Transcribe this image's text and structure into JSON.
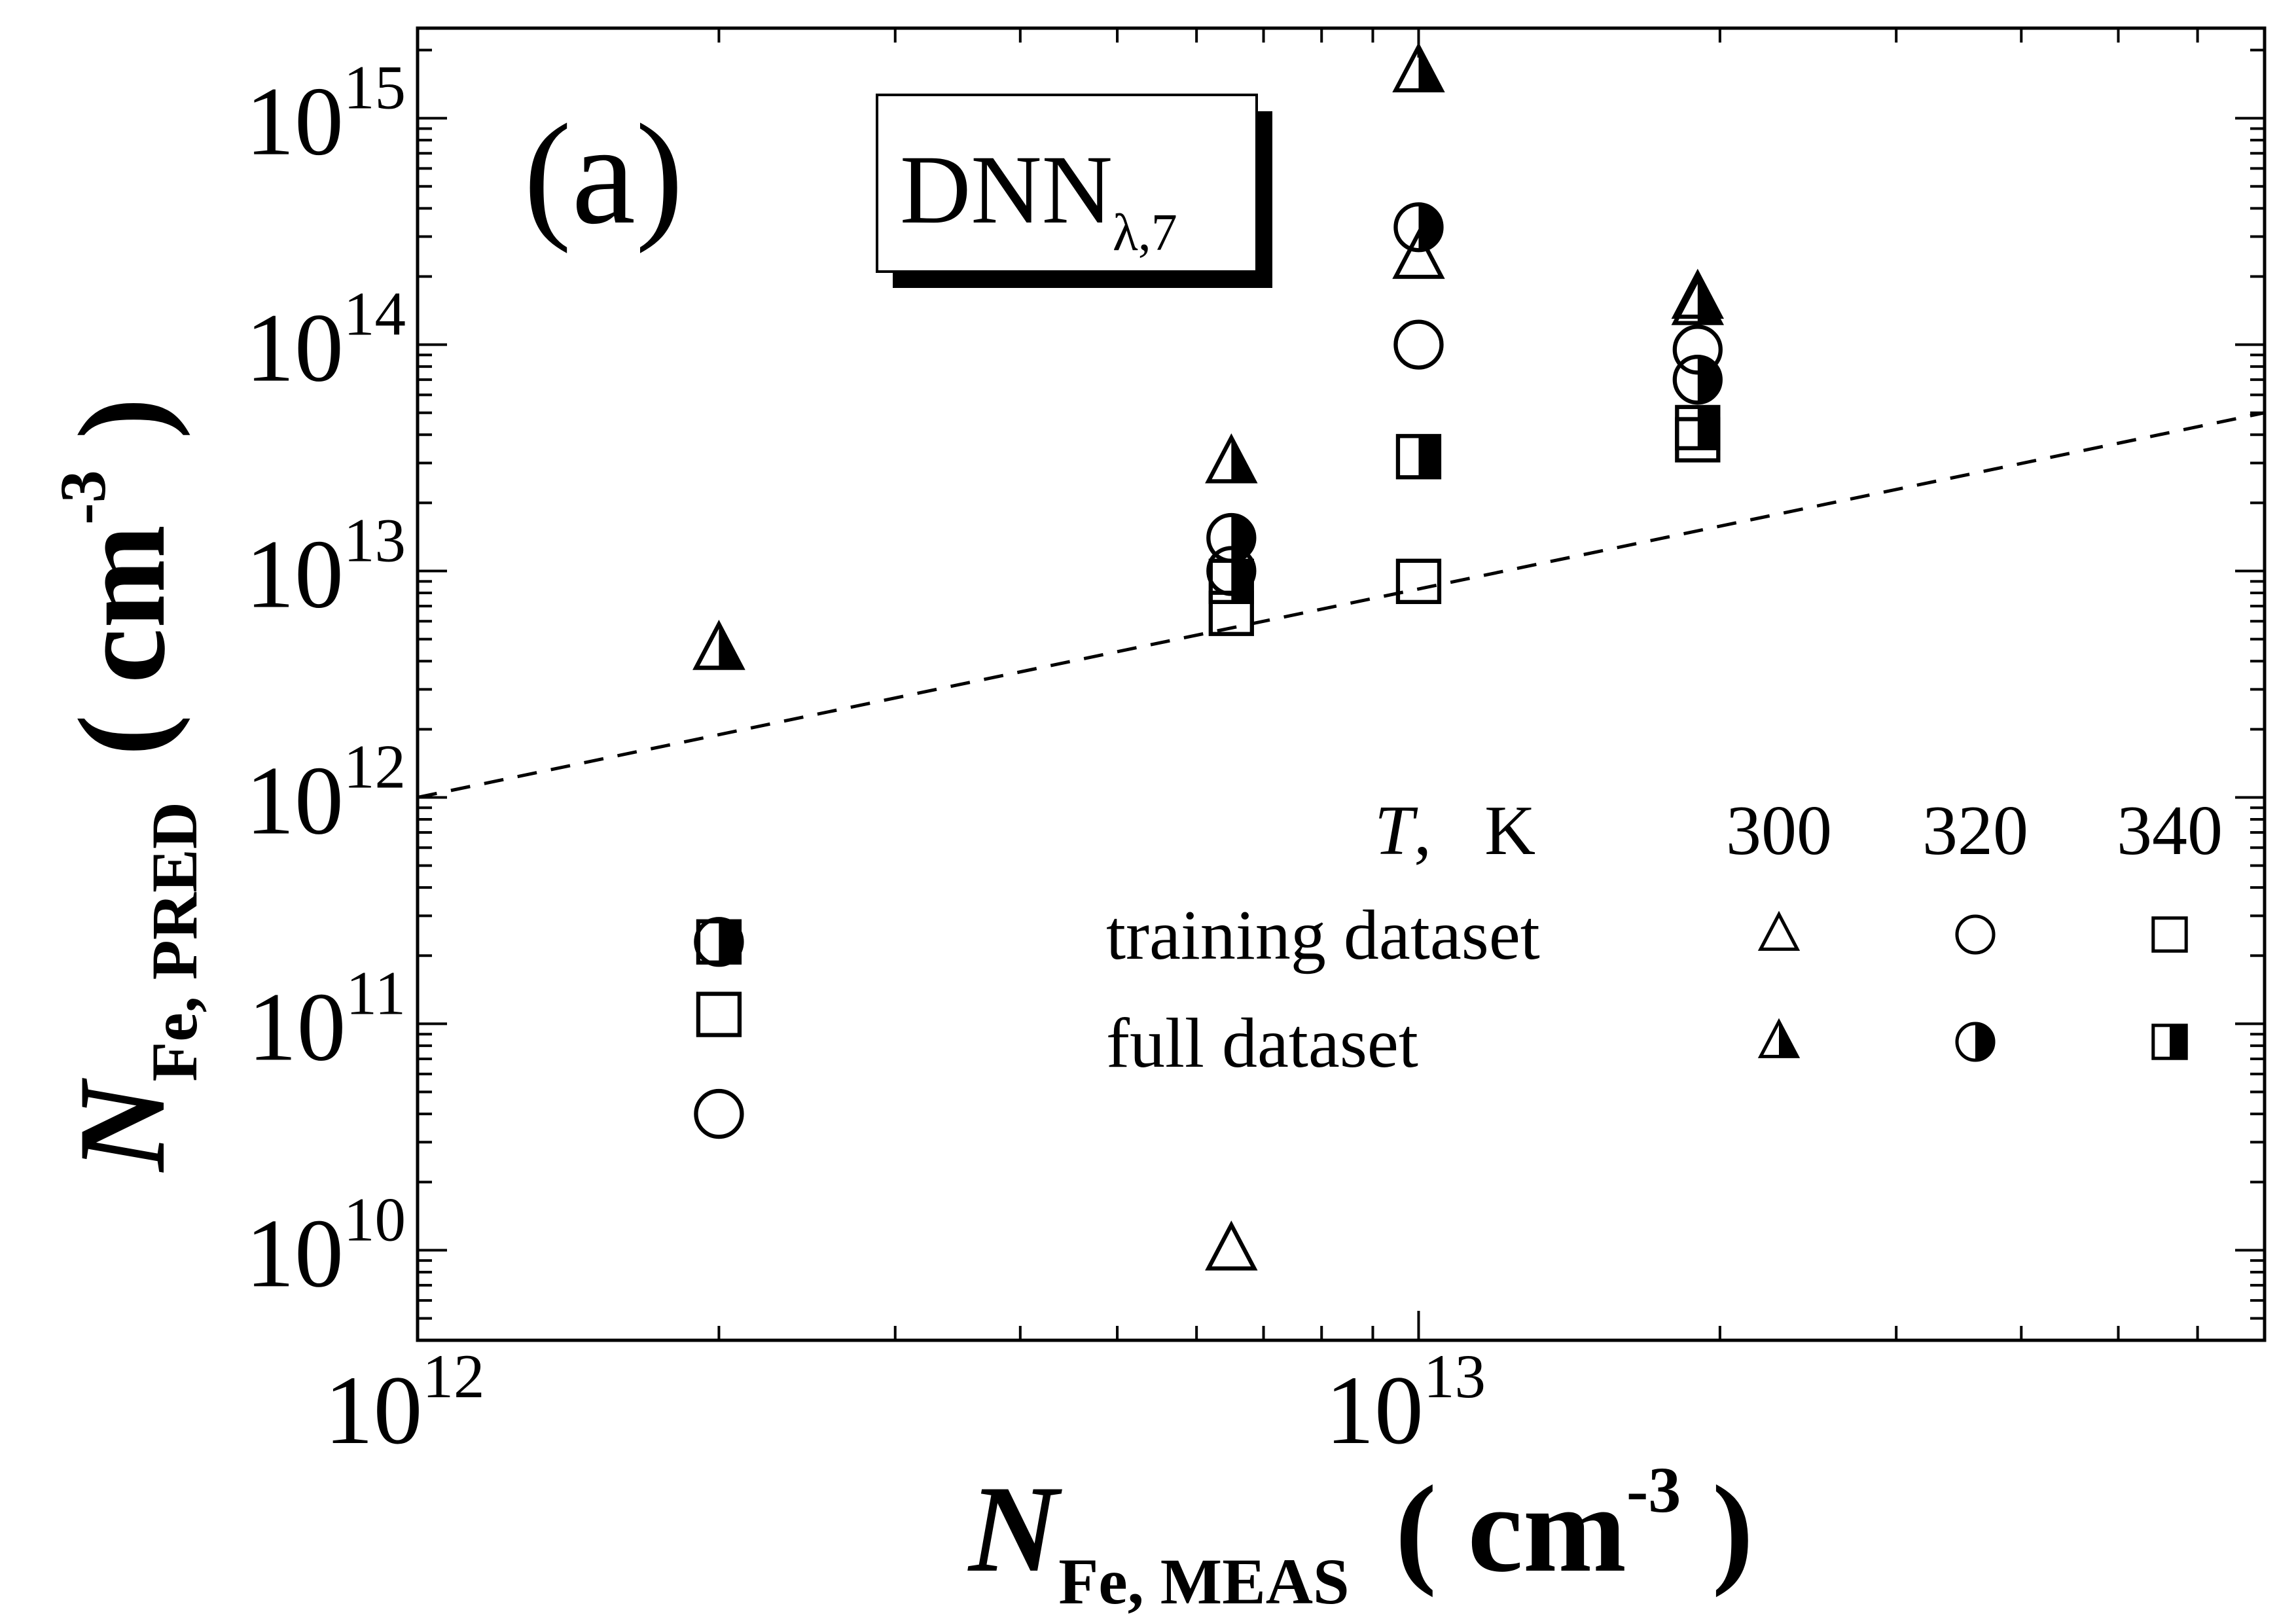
{
  "chart_data": {
    "type": "scatter",
    "panel_label": "(a)",
    "model_label": {
      "main": "DNN",
      "sub": "λ,7"
    },
    "x_axis": {
      "scale": "log",
      "range": [
        1000000000000.0,
        70000000000000.0
      ],
      "major_ticks": [
        {
          "value": 1000000000000.0,
          "base": "10",
          "exp": "12"
        },
        {
          "value": 10000000000000.0,
          "base": "10",
          "exp": "13"
        }
      ],
      "label": {
        "symbol": "N",
        "sub": "Fe, MEAS",
        "unit_open": "( cm",
        "unit_exp": "-3",
        "unit_close": " )"
      }
    },
    "y_axis": {
      "scale": "log",
      "range": [
        4000000000.0,
        2500000000000000.0
      ],
      "major_ticks": [
        {
          "value": 10000000000.0,
          "base": "10",
          "exp": "10"
        },
        {
          "value": 100000000000.0,
          "base": "10",
          "exp": "11"
        },
        {
          "value": 1000000000000.0,
          "base": "10",
          "exp": "12"
        },
        {
          "value": 10000000000000.0,
          "base": "10",
          "exp": "13"
        },
        {
          "value": 100000000000000.0,
          "base": "10",
          "exp": "14"
        },
        {
          "value": 1000000000000000.0,
          "base": "10",
          "exp": "15"
        }
      ],
      "label": {
        "symbol": "N",
        "sub": "Fe, PRED",
        "unit_open": "( cm",
        "unit_exp": "-3",
        "unit_close": " )"
      }
    },
    "reference_line": {
      "style": "dashed",
      "x": [
        1000000000000.0,
        70000000000000.0
      ],
      "y": [
        1000000000000.0,
        50000000000000.0
      ]
    },
    "legend": {
      "placement": "bottom-right",
      "header": {
        "var": "T",
        "unit": ",   K"
      },
      "temperatures": [
        "300",
        "320",
        "340"
      ],
      "rows": [
        {
          "label": "training dataset",
          "fill": "open"
        },
        {
          "label": "full dataset",
          "fill": "half"
        }
      ]
    },
    "series": [
      {
        "dataset": "training",
        "T": "300",
        "marker": "triangle",
        "fill": "open",
        "points": [
          {
            "x": 2000000000000.0,
            "y": 4500000000000.0
          },
          {
            "x": 6500000000000.0,
            "y": 10000000000.0
          },
          {
            "x": 10000000000000.0,
            "y": 240000000000000.0
          },
          {
            "x": 19000000000000.0,
            "y": 160000000000000.0
          }
        ]
      },
      {
        "dataset": "training",
        "T": "320",
        "marker": "circle",
        "fill": "open",
        "points": [
          {
            "x": 2000000000000.0,
            "y": 40000000000.0
          },
          {
            "x": 6500000000000.0,
            "y": 10000000000000.0
          },
          {
            "x": 10000000000000.0,
            "y": 100000000000000.0
          },
          {
            "x": 19000000000000.0,
            "y": 95000000000000.0
          }
        ]
      },
      {
        "dataset": "training",
        "T": "340",
        "marker": "square",
        "fill": "open",
        "points": [
          {
            "x": 2000000000000.0,
            "y": 110000000000.0
          },
          {
            "x": 6500000000000.0,
            "y": 6500000000000.0
          },
          {
            "x": 10000000000000.0,
            "y": 9000000000000.0
          },
          {
            "x": 19000000000000.0,
            "y": 38000000000000.0
          }
        ]
      },
      {
        "dataset": "full",
        "T": "300",
        "marker": "triangle",
        "fill": "half",
        "points": [
          {
            "x": 2000000000000.0,
            "y": 4500000000000.0
          },
          {
            "x": 6500000000000.0,
            "y": 30000000000000.0
          },
          {
            "x": 10000000000000.0,
            "y": 1600000000000000.0
          },
          {
            "x": 19000000000000.0,
            "y": 150000000000000.0
          }
        ]
      },
      {
        "dataset": "full",
        "T": "320",
        "marker": "circle",
        "fill": "half",
        "points": [
          {
            "x": 2000000000000.0,
            "y": 230000000000.0
          },
          {
            "x": 6500000000000.0,
            "y": 14000000000000.0
          },
          {
            "x": 10000000000000.0,
            "y": 330000000000000.0
          },
          {
            "x": 19000000000000.0,
            "y": 70000000000000.0
          }
        ]
      },
      {
        "dataset": "full",
        "T": "340",
        "marker": "square",
        "fill": "half",
        "points": [
          {
            "x": 2000000000000.0,
            "y": 230000000000.0
          },
          {
            "x": 6500000000000.0,
            "y": 9000000000000.0
          },
          {
            "x": 10000000000000.0,
            "y": 32000000000000.0
          },
          {
            "x": 19000000000000.0,
            "y": 43000000000000.0
          }
        ]
      }
    ]
  }
}
